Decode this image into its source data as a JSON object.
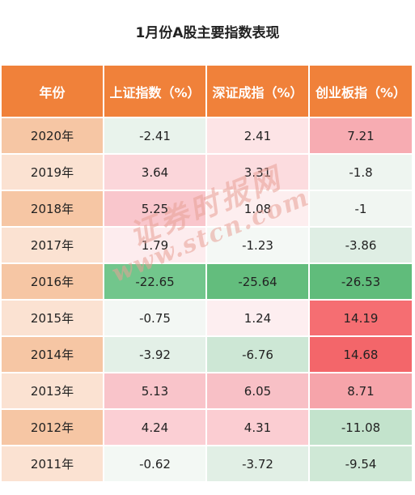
{
  "title": "1月份A股主要指数表现",
  "columns": [
    "年份",
    "上证指数（%）",
    "深证成指（%）",
    "创业板指（%）"
  ],
  "rows": [
    {
      "year": "2020年",
      "values": [
        "-2.41",
        "2.41",
        "7.21"
      ]
    },
    {
      "year": "2019年",
      "values": [
        "3.64",
        "3.31",
        "-1.8"
      ]
    },
    {
      "year": "2018年",
      "values": [
        "5.25",
        "1.08",
        "-1"
      ]
    },
    {
      "year": "2017年",
      "values": [
        "1.79",
        "-1.23",
        "-3.86"
      ]
    },
    {
      "year": "2016年",
      "values": [
        "-22.65",
        "-25.64",
        "-26.53"
      ]
    },
    {
      "year": "2015年",
      "values": [
        "-0.75",
        "1.24",
        "14.19"
      ]
    },
    {
      "year": "2014年",
      "values": [
        "-3.92",
        "-6.76",
        "14.68"
      ]
    },
    {
      "year": "2013年",
      "values": [
        "5.13",
        "6.05",
        "8.71"
      ]
    },
    {
      "year": "2012年",
      "values": [
        "4.24",
        "4.31",
        "-11.08"
      ]
    },
    {
      "year": "2011年",
      "values": [
        "-0.62",
        "-3.72",
        "-9.54"
      ]
    }
  ],
  "colors": {
    "header": "#f0813a",
    "year_dark": "#f6c6a4",
    "year_light": "#fbe2d2",
    "cells": [
      [
        "#e9f3ec",
        "#fde4e6",
        "#f7acb2"
      ],
      [
        "#fbd6da",
        "#fcdcdf",
        "#eef5f0"
      ],
      [
        "#f9c6cc",
        "#fdeeef",
        "#f1f6f2"
      ],
      [
        "#fdecee",
        "#f4f8f5",
        "#dfeee4"
      ],
      [
        "#72c68c",
        "#63bd7d",
        "#60bc7b"
      ],
      [
        "#f3f7f4",
        "#fdeef0",
        "#f56e72"
      ],
      [
        "#e3f0e7",
        "#cde7d5",
        "#f3666a"
      ],
      [
        "#f9c4ca",
        "#f8c0c6",
        "#f6a4aa"
      ],
      [
        "#fbcfd4",
        "#fbcdd2",
        "#c3e3cc"
      ],
      [
        "#f3f8f4",
        "#e1efe5",
        "#cfe8d6"
      ]
    ]
  },
  "watermark": {
    "cn": "证券时报网",
    "url": "www.stcn.com"
  }
}
